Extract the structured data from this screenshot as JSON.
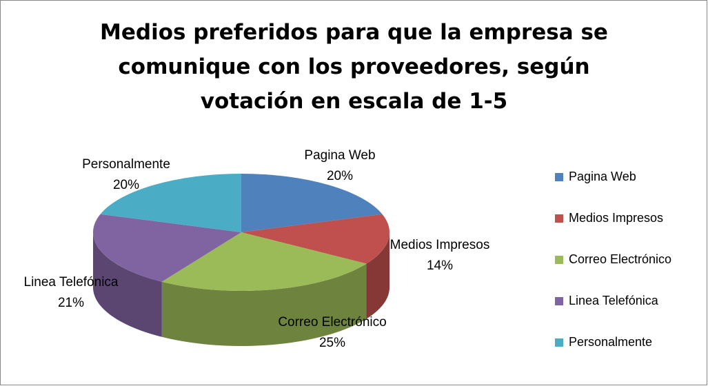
{
  "chart_data": {
    "type": "pie",
    "title": "Medios preferidos para que la empresa se comunique con los proveedores, según votación en escala de 1-5",
    "categories": [
      "Pagina Web",
      "Medios Impresos",
      "Correo Electrónico",
      "Linea Telefónica",
      "Personalmente"
    ],
    "values": [
      20,
      14,
      25,
      21,
      20
    ],
    "value_labels": [
      "20%",
      "14%",
      "25%",
      "21%",
      "20%"
    ],
    "colors": [
      "#4f81bd",
      "#c0504d",
      "#9bbb59",
      "#8064a2",
      "#4bacc6"
    ],
    "legend": "right"
  }
}
